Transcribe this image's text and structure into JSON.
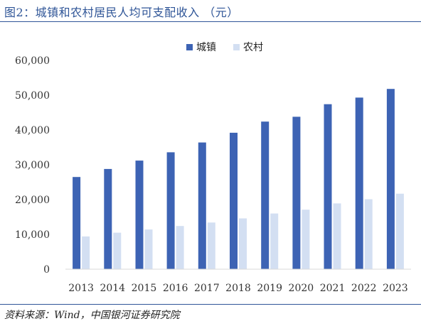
{
  "figure": {
    "title": "图2：城镇和农村居民人均可支配收入 （元）",
    "source": "资料来源：Wind，中国银河证券研究院"
  },
  "colors": {
    "accent": "#2f5597",
    "urban": "#3d63b4",
    "rural": "#d3dff2",
    "axis": "#d9d9d9"
  },
  "chart_data": {
    "type": "bar",
    "categories": [
      "2013",
      "2014",
      "2015",
      "2016",
      "2017",
      "2018",
      "2019",
      "2020",
      "2021",
      "2022",
      "2023"
    ],
    "series": [
      {
        "name": "城镇",
        "values": [
          26500,
          28800,
          31200,
          33600,
          36400,
          39200,
          42400,
          43800,
          47400,
          49300,
          51800
        ]
      },
      {
        "name": "农村",
        "values": [
          9400,
          10500,
          11400,
          12400,
          13400,
          14600,
          16000,
          17100,
          18900,
          20100,
          21700
        ]
      }
    ],
    "ylim": [
      0,
      60000
    ],
    "yticks": [
      0,
      10000,
      20000,
      30000,
      40000,
      50000,
      60000
    ],
    "ytick_labels": [
      "0",
      "10,000",
      "20,000",
      "30,000",
      "40,000",
      "50,000",
      "60,000"
    ],
    "legend_position": "top-center",
    "grid": false
  }
}
